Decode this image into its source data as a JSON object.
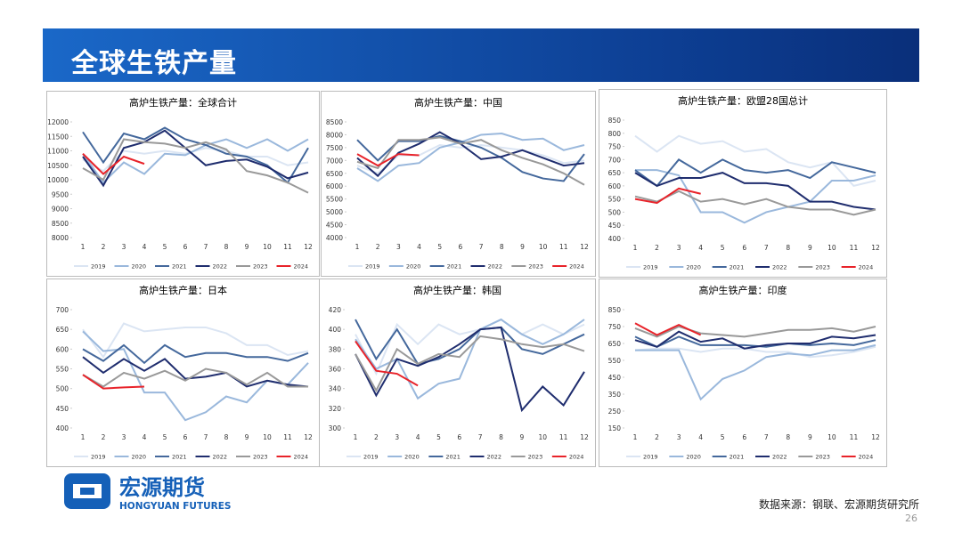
{
  "header": {
    "title": "全球生铁产量"
  },
  "footer": {
    "source": "数据来源：钢联、宏源期货研究所",
    "page": "26"
  },
  "logo": {
    "name": "宏源期货",
    "english": "HONGYUAN FUTURES"
  },
  "chart_data": [
    {
      "type": "line",
      "title": "高炉生铁产量：全球合计",
      "categories": [
        "1",
        "2",
        "3",
        "4",
        "5",
        "6",
        "7",
        "8",
        "9",
        "10",
        "11",
        "12"
      ],
      "ylim": [
        8000,
        12000
      ],
      "yticks": [
        8000,
        8500,
        9000,
        9500,
        10000,
        10500,
        11000,
        11500,
        12000
      ],
      "series": [
        {
          "name": "2019",
          "color": "#dbe5f3",
          "values": [
            10700,
            10300,
            11000,
            10900,
            11000,
            10900,
            11100,
            11000,
            10800,
            10800,
            10500,
            10600
          ]
        },
        {
          "name": "2020",
          "color": "#9ab8dc",
          "values": [
            10900,
            9900,
            10600,
            10200,
            10900,
            10850,
            11200,
            11400,
            11100,
            11400,
            11000,
            11400
          ]
        },
        {
          "name": "2021",
          "color": "#44689c",
          "values": [
            11650,
            10600,
            11600,
            11400,
            11800,
            11400,
            11200,
            10900,
            10800,
            10500,
            9900,
            11100
          ]
        },
        {
          "name": "2022",
          "color": "#1f2d6e",
          "values": [
            10800,
            9800,
            11100,
            11300,
            11700,
            11100,
            10500,
            10650,
            10700,
            10450,
            10050,
            10250
          ]
        },
        {
          "name": "2023",
          "color": "#999999",
          "values": [
            10400,
            10000,
            11400,
            11300,
            11250,
            11100,
            11300,
            11050,
            10300,
            10150,
            9900,
            9550
          ]
        },
        {
          "name": "2024",
          "color": "#e8232a",
          "values": [
            10900,
            10200,
            10800,
            10550,
            null,
            null,
            null,
            null,
            null,
            null,
            null,
            null
          ]
        }
      ]
    },
    {
      "type": "line",
      "title": "高炉生铁产量：中国",
      "categories": [
        "1",
        "2",
        "3",
        "4",
        "5",
        "6",
        "7",
        "8",
        "9",
        "10",
        "11",
        "12"
      ],
      "ylim": [
        4000,
        8500
      ],
      "yticks": [
        4000,
        4500,
        5000,
        5500,
        6000,
        6500,
        7000,
        7500,
        8000,
        8500
      ],
      "series": [
        {
          "name": "2019",
          "color": "#dbe5f3",
          "values": [
            6800,
            6500,
            7200,
            7200,
            7600,
            7500,
            7600,
            7500,
            7400,
            7200,
            6900,
            7000
          ]
        },
        {
          "name": "2020",
          "color": "#9ab8dc",
          "values": [
            6700,
            6200,
            6800,
            6900,
            7500,
            7700,
            8000,
            8050,
            7800,
            7850,
            7400,
            7600
          ]
        },
        {
          "name": "2021",
          "color": "#44689c",
          "values": [
            7800,
            7000,
            7750,
            7750,
            7950,
            7750,
            7500,
            7100,
            6550,
            6300,
            6200,
            7250
          ]
        },
        {
          "name": "2022",
          "color": "#1f2d6e",
          "values": [
            7100,
            6400,
            7300,
            7650,
            8100,
            7650,
            7050,
            7150,
            7400,
            7100,
            6800,
            6900
          ]
        },
        {
          "name": "2023",
          "color": "#999999",
          "values": [
            6950,
            6700,
            7800,
            7800,
            7900,
            7650,
            7800,
            7400,
            7100,
            6850,
            6500,
            6050
          ]
        },
        {
          "name": "2024",
          "color": "#e8232a",
          "values": [
            7250,
            6800,
            7250,
            7200,
            null,
            null,
            null,
            null,
            null,
            null,
            null,
            null
          ]
        }
      ]
    },
    {
      "type": "line",
      "title": "高炉生铁产量：欧盟28国总计",
      "categories": [
        "1",
        "2",
        "3",
        "4",
        "5",
        "6",
        "7",
        "8",
        "9",
        "10",
        "11",
        "12"
      ],
      "ylim": [
        400,
        850
      ],
      "yticks": [
        400,
        450,
        500,
        550,
        600,
        650,
        700,
        750,
        800,
        850
      ],
      "series": [
        {
          "name": "2019",
          "color": "#dbe5f3",
          "values": [
            790,
            730,
            790,
            760,
            770,
            730,
            740,
            690,
            670,
            690,
            600,
            620
          ]
        },
        {
          "name": "2020",
          "color": "#9ab8dc",
          "values": [
            660,
            660,
            640,
            500,
            500,
            460,
            500,
            520,
            540,
            620,
            620,
            640
          ]
        },
        {
          "name": "2021",
          "color": "#44689c",
          "values": [
            660,
            600,
            700,
            650,
            700,
            660,
            650,
            660,
            630,
            690,
            670,
            650
          ]
        },
        {
          "name": "2022",
          "color": "#1f2d6e",
          "values": [
            650,
            600,
            630,
            630,
            650,
            610,
            610,
            600,
            540,
            540,
            520,
            510
          ]
        },
        {
          "name": "2023",
          "color": "#999999",
          "values": [
            560,
            540,
            580,
            540,
            550,
            530,
            550,
            520,
            510,
            510,
            490,
            510
          ]
        },
        {
          "name": "2024",
          "color": "#e8232a",
          "values": [
            550,
            535,
            590,
            570,
            null,
            null,
            null,
            null,
            null,
            null,
            null,
            null
          ]
        }
      ]
    },
    {
      "type": "line",
      "title": "高炉生铁产量：日本",
      "categories": [
        "1",
        "2",
        "3",
        "4",
        "5",
        "6",
        "7",
        "8",
        "9",
        "10",
        "11",
        "12"
      ],
      "ylim": [
        400,
        700
      ],
      "yticks": [
        400,
        450,
        500,
        550,
        600,
        650,
        700
      ],
      "series": [
        {
          "name": "2019",
          "color": "#dbe5f3",
          "values": [
            650,
            580,
            665,
            645,
            650,
            655,
            655,
            640,
            610,
            610,
            585,
            595
          ]
        },
        {
          "name": "2020",
          "color": "#9ab8dc",
          "values": [
            645,
            595,
            600,
            490,
            490,
            420,
            440,
            480,
            465,
            520,
            510,
            565
          ]
        },
        {
          "name": "2021",
          "color": "#44689c",
          "values": [
            600,
            570,
            610,
            565,
            610,
            580,
            590,
            590,
            580,
            580,
            570,
            590
          ]
        },
        {
          "name": "2022",
          "color": "#1f2d6e",
          "values": [
            580,
            540,
            575,
            545,
            575,
            525,
            530,
            540,
            505,
            520,
            510,
            505
          ]
        },
        {
          "name": "2023",
          "color": "#999999",
          "values": [
            535,
            505,
            540,
            525,
            545,
            520,
            550,
            540,
            510,
            540,
            505,
            505
          ]
        },
        {
          "name": "2024",
          "color": "#e8232a",
          "values": [
            535,
            500,
            503,
            505,
            null,
            null,
            null,
            null,
            null,
            null,
            null,
            null
          ]
        }
      ]
    },
    {
      "type": "line",
      "title": "高炉生铁产量：韩国",
      "categories": [
        "1",
        "2",
        "3",
        "4",
        "5",
        "6",
        "7",
        "8",
        "9",
        "10",
        "11",
        "12"
      ],
      "ylim": [
        300,
        420
      ],
      "yticks": [
        300,
        320,
        340,
        360,
        380,
        400,
        420
      ],
      "series": [
        {
          "name": "2019",
          "color": "#dbe5f3",
          "values": [
            395,
            355,
            405,
            385,
            405,
            395,
            400,
            410,
            395,
            405,
            395,
            405
          ]
        },
        {
          "name": "2020",
          "color": "#9ab8dc",
          "values": [
            390,
            360,
            370,
            330,
            345,
            350,
            400,
            410,
            395,
            385,
            395,
            410
          ]
        },
        {
          "name": "2021",
          "color": "#44689c",
          "values": [
            410,
            370,
            400,
            365,
            370,
            380,
            400,
            402,
            380,
            375,
            385,
            395
          ]
        },
        {
          "name": "2022",
          "color": "#1f2d6e",
          "values": [
            375,
            333,
            370,
            363,
            372,
            385,
            400,
            402,
            318,
            342,
            323,
            357
          ]
        },
        {
          "name": "2023",
          "color": "#999999",
          "values": [
            375,
            338,
            380,
            365,
            375,
            372,
            393,
            390,
            385,
            382,
            385,
            378
          ]
        },
        {
          "name": "2024",
          "color": "#e8232a",
          "values": [
            388,
            358,
            355,
            343,
            null,
            null,
            null,
            null,
            null,
            null,
            null,
            null
          ]
        }
      ]
    },
    {
      "type": "line",
      "title": "高炉生铁产量：印度",
      "categories": [
        "1",
        "2",
        "3",
        "4",
        "5",
        "6",
        "7",
        "8",
        "9",
        "10",
        "11",
        "12"
      ],
      "ylim": [
        150,
        850
      ],
      "yticks": [
        150,
        250,
        350,
        450,
        550,
        650,
        750,
        850
      ],
      "series": [
        {
          "name": "2019",
          "color": "#dbe5f3",
          "values": [
            610,
            620,
            620,
            600,
            620,
            620,
            600,
            600,
            570,
            580,
            600,
            630
          ]
        },
        {
          "name": "2020",
          "color": "#9ab8dc",
          "values": [
            610,
            610,
            610,
            320,
            440,
            490,
            570,
            590,
            580,
            610,
            610,
            640
          ]
        },
        {
          "name": "2021",
          "color": "#44689c",
          "values": [
            690,
            630,
            690,
            640,
            640,
            640,
            630,
            650,
            640,
            650,
            640,
            670
          ]
        },
        {
          "name": "2022",
          "color": "#1f2d6e",
          "values": [
            670,
            630,
            720,
            660,
            680,
            620,
            640,
            650,
            650,
            690,
            680,
            700
          ]
        },
        {
          "name": "2023",
          "color": "#999999",
          "values": [
            740,
            690,
            750,
            710,
            700,
            690,
            710,
            730,
            730,
            740,
            720,
            750
          ]
        },
        {
          "name": "2024",
          "color": "#e8232a",
          "values": [
            770,
            700,
            760,
            700,
            null,
            null,
            null,
            null,
            null,
            null,
            null,
            null
          ]
        }
      ]
    }
  ]
}
